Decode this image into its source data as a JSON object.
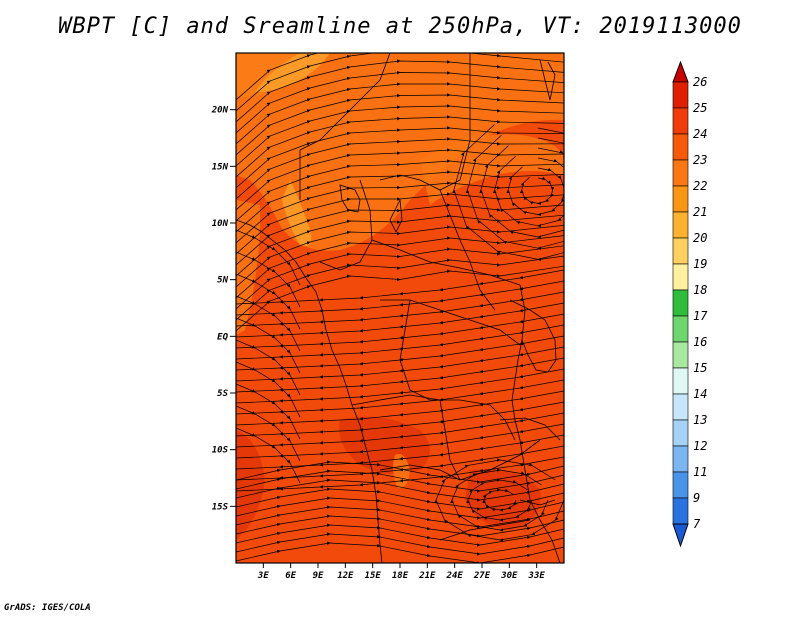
{
  "title": "WBPT [C] and Sreamline at 250hPa, VT: 2019113000",
  "credit": "GrADS: IGES/COLA",
  "map": {
    "lon_range": [
      0,
      36
    ],
    "lat_range": [
      -20,
      25
    ],
    "x_ticks": [
      {
        "value": 3,
        "label": "3E"
      },
      {
        "value": 6,
        "label": "6E"
      },
      {
        "value": 9,
        "label": "9E"
      },
      {
        "value": 12,
        "label": "12E"
      },
      {
        "value": 15,
        "label": "15E"
      },
      {
        "value": 18,
        "label": "18E"
      },
      {
        "value": 21,
        "label": "21E"
      },
      {
        "value": 24,
        "label": "24E"
      },
      {
        "value": 27,
        "label": "27E"
      },
      {
        "value": 30,
        "label": "30E"
      },
      {
        "value": 33,
        "label": "33E"
      }
    ],
    "y_ticks": [
      {
        "value": 20,
        "label": "20N"
      },
      {
        "value": 15,
        "label": "15N"
      },
      {
        "value": 10,
        "label": "10N"
      },
      {
        "value": 5,
        "label": "5N"
      },
      {
        "value": 0,
        "label": "EQ"
      },
      {
        "value": -5,
        "label": "5S"
      },
      {
        "value": -10,
        "label": "10S"
      },
      {
        "value": -15,
        "label": "15S"
      }
    ],
    "colors": {
      "base_field": "#f24a0a",
      "warm_core": "#e33508",
      "orange_band": "#fa7814",
      "light_band": "#fca02a",
      "yellow_band": "#fdc44c",
      "streamline": "#000000"
    }
  },
  "colorbar": {
    "labels": [
      "26",
      "25",
      "24",
      "23",
      "22",
      "21",
      "20",
      "19",
      "18",
      "17",
      "16",
      "15",
      "14",
      "13",
      "12",
      "11",
      "9",
      "7"
    ],
    "colors": [
      "#c80000",
      "#de1f00",
      "#f03c0a",
      "#f55a0a",
      "#fa7814",
      "#fa9616",
      "#fcb22e",
      "#fdd060",
      "#fef0a0",
      "#2fbd3b",
      "#6fd66f",
      "#a8e8a0",
      "#e0f8f4",
      "#c8e6fa",
      "#a6d2f8",
      "#7cb6f0",
      "#4a94e8",
      "#2a72e0",
      "#1a5ad4"
    ]
  }
}
